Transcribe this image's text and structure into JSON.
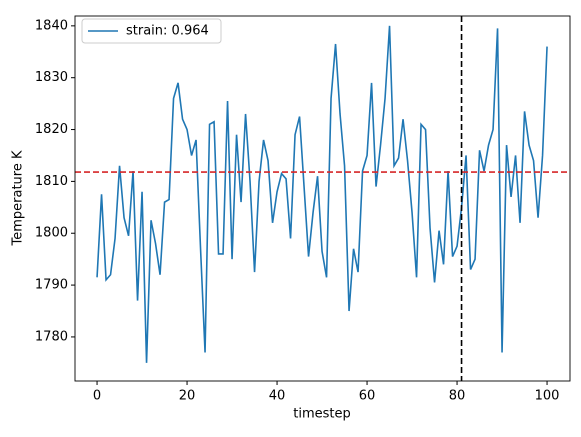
{
  "chart_data": {
    "type": "line",
    "xlabel": "timestep",
    "ylabel": "Temperature K",
    "x": [
      0,
      1,
      2,
      3,
      4,
      5,
      6,
      7,
      8,
      9,
      10,
      11,
      12,
      13,
      14,
      15,
      16,
      17,
      18,
      19,
      20,
      21,
      22,
      23,
      24,
      25,
      26,
      27,
      28,
      29,
      30,
      31,
      32,
      33,
      34,
      35,
      36,
      37,
      38,
      39,
      40,
      41,
      42,
      43,
      44,
      45,
      46,
      47,
      48,
      49,
      50,
      51,
      52,
      53,
      54,
      55,
      56,
      57,
      58,
      59,
      60,
      61,
      62,
      63,
      64,
      65,
      66,
      67,
      68,
      69,
      70,
      71,
      72,
      73,
      74,
      75,
      76,
      77,
      78,
      79,
      80,
      81,
      82,
      83,
      84,
      85,
      86,
      87,
      88,
      89,
      90,
      91,
      92,
      93,
      94,
      95,
      96,
      97,
      98,
      99,
      100
    ],
    "series": [
      {
        "name": "strain: 0.964",
        "color": "#1f77b4",
        "values": [
          1791.5,
          1807.5,
          1791,
          1792,
          1799,
          1813,
          1803,
          1799.5,
          1812,
          1787,
          1808,
          1775,
          1802.5,
          1798,
          1792,
          1806,
          1806.5,
          1826,
          1829,
          1822,
          1820,
          1815,
          1818,
          1797,
          1777,
          1821,
          1821.5,
          1796,
          1796,
          1825.5,
          1795,
          1819,
          1806,
          1823,
          1810,
          1792.5,
          1810,
          1818,
          1814,
          1802,
          1808,
          1811.5,
          1810.5,
          1799,
          1819,
          1822.5,
          1809,
          1795.5,
          1804,
          1811,
          1796.5,
          1791.5,
          1826,
          1836.5,
          1823,
          1813,
          1785,
          1797,
          1792.5,
          1812,
          1815,
          1829,
          1809,
          1817,
          1826,
          1840,
          1813,
          1814.5,
          1822,
          1814,
          1804,
          1791.5,
          1821,
          1820,
          1801,
          1790.5,
          1800.5,
          1794,
          1812,
          1795.5,
          1797.5,
          1805,
          1815,
          1793,
          1795,
          1816,
          1812,
          1817,
          1820,
          1839.5,
          1777,
          1817,
          1807,
          1815,
          1802,
          1823.5,
          1817,
          1814,
          1803,
          1815,
          1836
        ]
      }
    ],
    "xlim": [
      -4.9,
      105.1
    ],
    "ylim": [
      1771.5,
      1841.9
    ],
    "xticks": [
      0,
      20,
      40,
      60,
      80,
      100
    ],
    "yticks": [
      1780,
      1790,
      1800,
      1810,
      1820,
      1830,
      1840
    ],
    "hline": 1811.8,
    "hline_color": "#d62728",
    "vline": 81,
    "vline_color": "#000000",
    "legend": "upper left"
  }
}
